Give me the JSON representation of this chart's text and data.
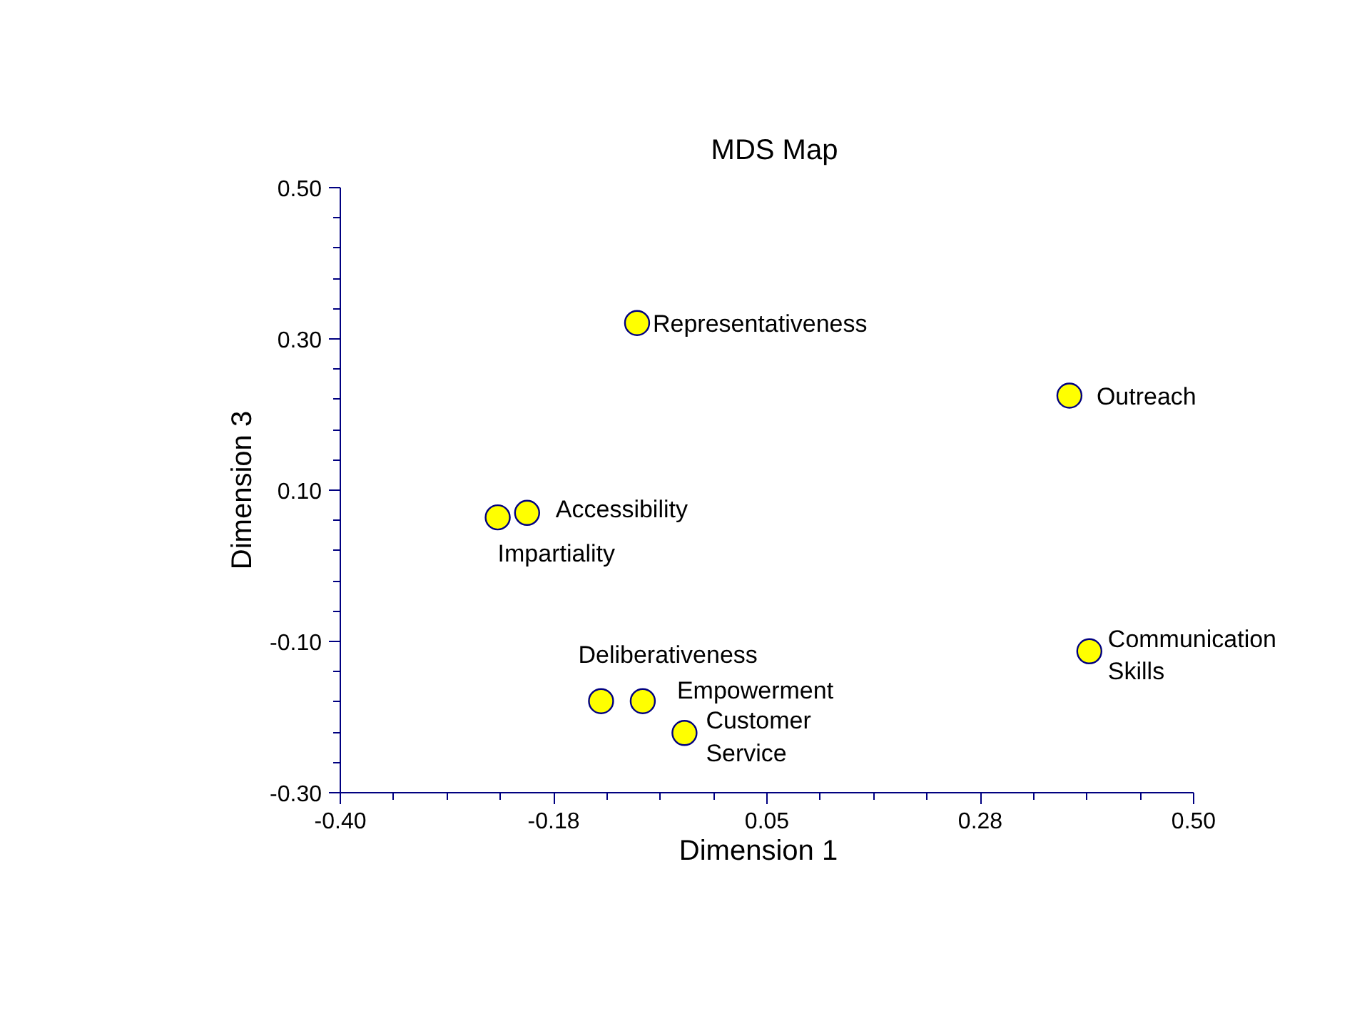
{
  "chart_data": {
    "type": "scatter",
    "title": "MDS Map",
    "xlabel": "Dimension 1",
    "ylabel": "Dimension 3",
    "x": [
      -0.087,
      0.369,
      -0.203,
      -0.234,
      0.39,
      -0.125,
      -0.081,
      -0.037
    ],
    "values": [
      0.321,
      0.225,
      0.07,
      0.064,
      -0.113,
      -0.179,
      -0.179,
      -0.221
    ],
    "color": "#ffff00",
    "marker": "circle",
    "grid": false,
    "xlim": [
      -0.4,
      0.5
    ],
    "xticks": [
      {
        "value": -0.4,
        "label": "-0.40"
      },
      {
        "value": -0.175,
        "label": "-0.18"
      },
      0.05,
      {
        "value": 0.275,
        "label": "0.28"
      },
      {
        "value": 0.5,
        "label": "0.50"
      }
    ],
    "ylim": [
      -0.3,
      0.5
    ],
    "yticks": [
      {
        "value": -0.3,
        "label": "-0.30"
      },
      {
        "value": -0.1,
        "label": "-0.10"
      },
      {
        "value": 0.1,
        "label": "0.10"
      },
      {
        "value": 0.3,
        "label": "0.30"
      },
      {
        "value": 0.5,
        "label": "0.50"
      }
    ],
    "annotations": [
      {
        "text": "Representativeness",
        "x": -0.087,
        "y": 0.321
      },
      {
        "text": "Outreach",
        "x": 0.369,
        "y": 0.225
      },
      {
        "text": "Accessibility",
        "x": -0.203,
        "y": 0.07
      },
      {
        "text": "Impartiality",
        "x": -0.234,
        "y": 0.064
      },
      {
        "text": "Communication\nSkills",
        "x": 0.39,
        "y": -0.113
      },
      {
        "text": "Deliberativeness",
        "x": -0.125,
        "y": -0.179
      },
      {
        "text": "Empowerment",
        "x": -0.081,
        "y": -0.179
      },
      {
        "text": "Customer\nService",
        "x": -0.037,
        "y": -0.221
      }
    ]
  }
}
